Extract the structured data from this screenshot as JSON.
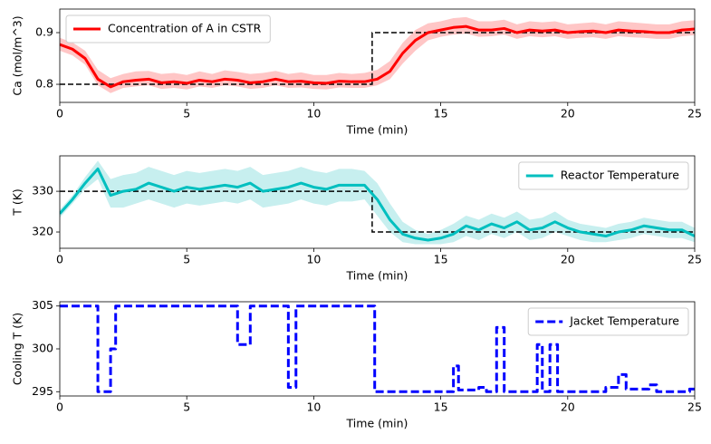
{
  "chart_data": [
    {
      "type": "line",
      "xlabel": "Time (min)",
      "ylabel": "Ca (mol/m^3)",
      "x": [
        0,
        0.5,
        1,
        1.5,
        2,
        2.5,
        3,
        3.5,
        4,
        4.5,
        5,
        5.5,
        6,
        6.5,
        7,
        7.5,
        8,
        8.5,
        9,
        9.5,
        10,
        10.5,
        11,
        11.5,
        12,
        12.5,
        13,
        13.5,
        14,
        14.5,
        15,
        15.5,
        16,
        16.5,
        17,
        17.5,
        18,
        18.5,
        19,
        19.5,
        20,
        20.5,
        21,
        21.5,
        22,
        22.5,
        23,
        23.5,
        24,
        24.5,
        25
      ],
      "series": [
        {
          "name": "Concentration of A in CSTR",
          "color": "#ff0000",
          "linestyle": "solid",
          "values": [
            0.877,
            0.868,
            0.85,
            0.81,
            0.795,
            0.805,
            0.808,
            0.81,
            0.803,
            0.805,
            0.802,
            0.808,
            0.805,
            0.81,
            0.808,
            0.803,
            0.805,
            0.81,
            0.805,
            0.806,
            0.803,
            0.802,
            0.806,
            0.805,
            0.805,
            0.81,
            0.825,
            0.86,
            0.885,
            0.9,
            0.905,
            0.91,
            0.912,
            0.905,
            0.905,
            0.908,
            0.9,
            0.905,
            0.903,
            0.905,
            0.9,
            0.902,
            0.903,
            0.9,
            0.905,
            0.903,
            0.902,
            0.9,
            0.9,
            0.905,
            0.907
          ]
        }
      ],
      "band": {
        "color": "#ffc6c6",
        "lower": [
          0.865,
          0.856,
          0.838,
          0.798,
          0.783,
          0.793,
          0.796,
          0.798,
          0.791,
          0.793,
          0.79,
          0.796,
          0.793,
          0.798,
          0.796,
          0.791,
          0.793,
          0.798,
          0.793,
          0.794,
          0.791,
          0.79,
          0.794,
          0.793,
          0.793,
          0.798,
          0.81,
          0.84,
          0.865,
          0.885,
          0.892,
          0.896,
          0.898,
          0.892,
          0.893,
          0.896,
          0.888,
          0.893,
          0.891,
          0.893,
          0.888,
          0.89,
          0.891,
          0.888,
          0.893,
          0.891,
          0.89,
          0.888,
          0.888,
          0.893,
          0.895
        ],
        "upper": [
          0.89,
          0.881,
          0.865,
          0.828,
          0.812,
          0.82,
          0.825,
          0.826,
          0.82,
          0.822,
          0.818,
          0.825,
          0.82,
          0.827,
          0.824,
          0.82,
          0.822,
          0.826,
          0.82,
          0.823,
          0.818,
          0.818,
          0.822,
          0.82,
          0.822,
          0.828,
          0.845,
          0.88,
          0.905,
          0.918,
          0.922,
          0.928,
          0.93,
          0.922,
          0.922,
          0.925,
          0.916,
          0.922,
          0.92,
          0.922,
          0.916,
          0.918,
          0.92,
          0.916,
          0.922,
          0.92,
          0.918,
          0.916,
          0.916,
          0.922,
          0.924
        ]
      },
      "setpoint": {
        "color": "#000000",
        "x": [
          0,
          12.3,
          12.3,
          25
        ],
        "values": [
          0.8,
          0.8,
          0.9,
          0.9
        ]
      },
      "xlim": [
        0,
        25
      ],
      "xticks": [
        0,
        5,
        10,
        15,
        20,
        25
      ],
      "ylim": [
        0.765,
        0.9456
      ],
      "yticks": [
        0.8,
        0.9
      ],
      "legend": "upper left"
    },
    {
      "type": "line",
      "xlabel": "Time (min)",
      "ylabel": "T (K)",
      "x": [
        0,
        0.5,
        1,
        1.5,
        2,
        2.5,
        3,
        3.5,
        4,
        4.5,
        5,
        5.5,
        6,
        6.5,
        7,
        7.5,
        8,
        8.5,
        9,
        9.5,
        10,
        10.5,
        11,
        11.5,
        12,
        12.5,
        13,
        13.5,
        14,
        14.5,
        15,
        15.5,
        16,
        16.5,
        17,
        17.5,
        18,
        18.5,
        19,
        19.5,
        20,
        20.5,
        21,
        21.5,
        22,
        22.5,
        23,
        23.5,
        24,
        24.5,
        25
      ],
      "series": [
        {
          "name": "Reactor Temperature",
          "color": "#00bfbf",
          "linestyle": "solid",
          "values": [
            324.5,
            328,
            332,
            335.5,
            329,
            330,
            330.5,
            332,
            331,
            330,
            331,
            330.5,
            331,
            331.5,
            331,
            332,
            330,
            330.5,
            331,
            332,
            331,
            330.5,
            331.5,
            331.5,
            331.5,
            328,
            323,
            319.5,
            318.5,
            318,
            318.5,
            319.5,
            321.5,
            320.5,
            322,
            321,
            322.5,
            320.5,
            321,
            322.5,
            321,
            320,
            319.5,
            319,
            320,
            320.5,
            321.5,
            321,
            320.5,
            320.5,
            319
          ]
        }
      ],
      "band": {
        "color": "#c7efef",
        "lower": [
          323.5,
          327,
          330.5,
          333,
          326,
          326,
          327,
          328,
          327,
          326,
          327,
          326.5,
          327,
          327.5,
          327,
          328,
          326,
          326.5,
          327,
          328,
          327,
          326.5,
          327.5,
          327.5,
          328,
          324,
          320,
          317.5,
          317,
          317,
          317,
          317.5,
          319,
          318,
          319.5,
          318.5,
          320,
          318,
          318.5,
          320,
          319,
          318,
          317.5,
          317.5,
          318,
          318.5,
          319.5,
          319,
          318.5,
          318.5,
          317.5
        ],
        "upper": [
          325.5,
          329,
          333.5,
          337.5,
          333,
          334,
          334.5,
          336,
          335,
          334,
          335,
          334.5,
          335,
          335.5,
          335,
          336,
          334,
          334.5,
          335,
          336,
          335,
          334.5,
          335.5,
          335.5,
          335,
          332,
          327,
          322.5,
          320.5,
          319.5,
          320.5,
          322,
          324,
          323,
          324.5,
          323.5,
          325,
          323,
          323.5,
          325,
          323,
          322,
          321.5,
          321,
          322,
          322.5,
          323.5,
          323,
          322.5,
          322.5,
          321
        ]
      },
      "setpoint": {
        "color": "#000000",
        "x": [
          0,
          12.3,
          12.3,
          25
        ],
        "values": [
          330,
          330,
          320,
          320
        ]
      },
      "xlim": [
        0,
        25
      ],
      "xticks": [
        0,
        5,
        10,
        15,
        20,
        25
      ],
      "ylim": [
        316,
        338.7
      ],
      "yticks": [
        320,
        330
      ],
      "legend": "upper right"
    },
    {
      "type": "line",
      "xlabel": "Time (min)",
      "ylabel": "Cooling T (K)",
      "x": [
        0,
        1.5,
        1.5,
        2,
        2,
        2.2,
        2.2,
        7,
        7,
        7.5,
        7.5,
        9,
        9,
        9.3,
        9.3,
        12.4,
        12.4,
        15.5,
        15.5,
        15.7,
        15.7,
        16.5,
        16.5,
        16.8,
        16.8,
        17.2,
        17.2,
        17.5,
        17.5,
        18.8,
        18.8,
        19,
        19,
        19.3,
        19.3,
        19.6,
        19.6,
        21.5,
        21.5,
        22,
        22,
        22.3,
        22.3,
        23.2,
        23.2,
        23.5,
        23.5,
        24.8,
        24.8,
        25
      ],
      "series": [
        {
          "name": "Jacket Temperature",
          "color": "#0000ff",
          "linestyle": "dashed",
          "values": [
            305,
            305,
            295,
            295,
            300,
            300,
            305,
            305,
            300.5,
            300.5,
            305,
            305,
            295.5,
            295.5,
            305,
            305,
            295,
            295,
            298,
            298,
            295.2,
            295.2,
            295.5,
            295.5,
            295,
            295,
            302.5,
            302.5,
            295,
            295,
            300.5,
            300.5,
            295,
            295,
            300.5,
            300.5,
            295,
            295,
            295.5,
            295.5,
            297,
            297,
            295.3,
            295.3,
            295.8,
            295.8,
            295,
            295,
            295.3,
            295.3
          ]
        }
      ],
      "xlim": [
        0,
        25
      ],
      "xticks": [
        0,
        5,
        10,
        15,
        20,
        25
      ],
      "ylim": [
        294.5,
        305.5
      ],
      "yticks": [
        295,
        300,
        305
      ],
      "legend": "upper right"
    }
  ]
}
